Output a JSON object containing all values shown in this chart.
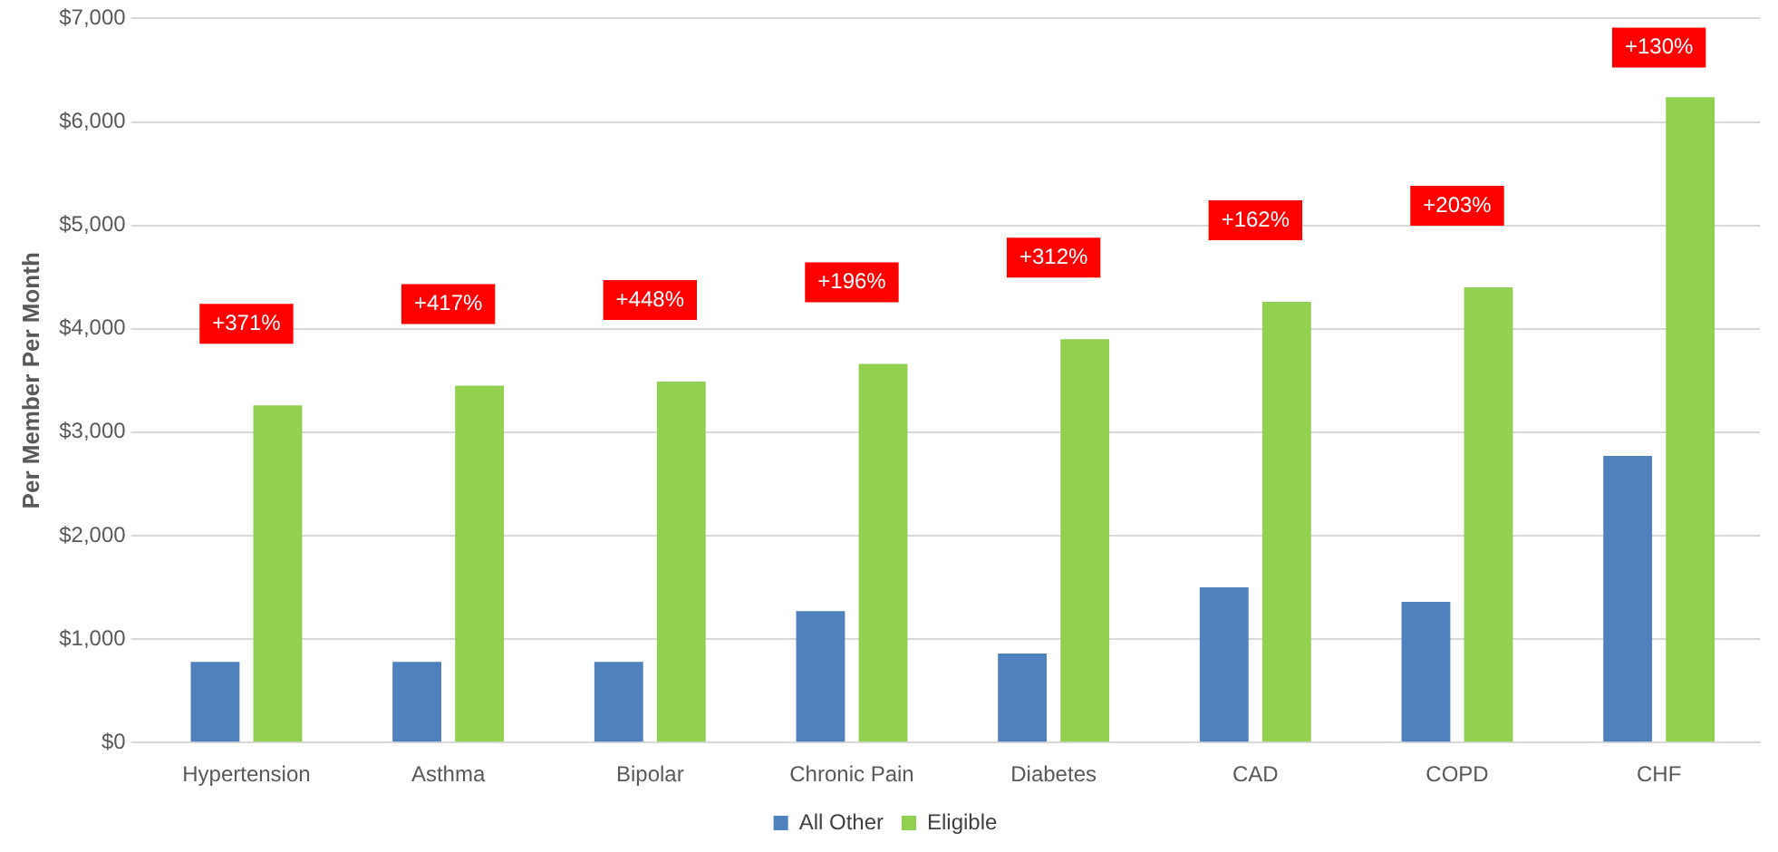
{
  "chart_data": {
    "type": "bar",
    "ylabel": "Per Member Per Month",
    "categories": [
      "Hypertension",
      "Asthma",
      "Bipolar",
      "Chronic Pain",
      "Diabetes",
      "CAD",
      "COPD",
      "CHF"
    ],
    "series": [
      {
        "name": "All Other",
        "color": "#4f81bd",
        "values": [
          780,
          780,
          780,
          1270,
          860,
          1500,
          1360,
          2770
        ]
      },
      {
        "name": "Eligible",
        "color": "#92d050",
        "values": [
          3260,
          3450,
          3490,
          3660,
          3900,
          4260,
          4400,
          6240
        ]
      }
    ],
    "ylim": [
      0,
      7000
    ],
    "yticks": [
      {
        "value": 0,
        "label": "$0"
      },
      {
        "value": 1000,
        "label": "$1,000"
      },
      {
        "value": 2000,
        "label": "$2,000"
      },
      {
        "value": 3000,
        "label": "$3,000"
      },
      {
        "value": 4000,
        "label": "$4,000"
      },
      {
        "value": 5000,
        "label": "$5,000"
      },
      {
        "value": 6000,
        "label": "$6,000"
      },
      {
        "value": 7000,
        "label": "$7,000"
      }
    ],
    "grid": "y",
    "legend": "bottom",
    "annotations": [
      "+371%",
      "+417%",
      "+448%",
      "+196%",
      "+312%",
      "+162%",
      "+203%",
      "+130%"
    ]
  }
}
